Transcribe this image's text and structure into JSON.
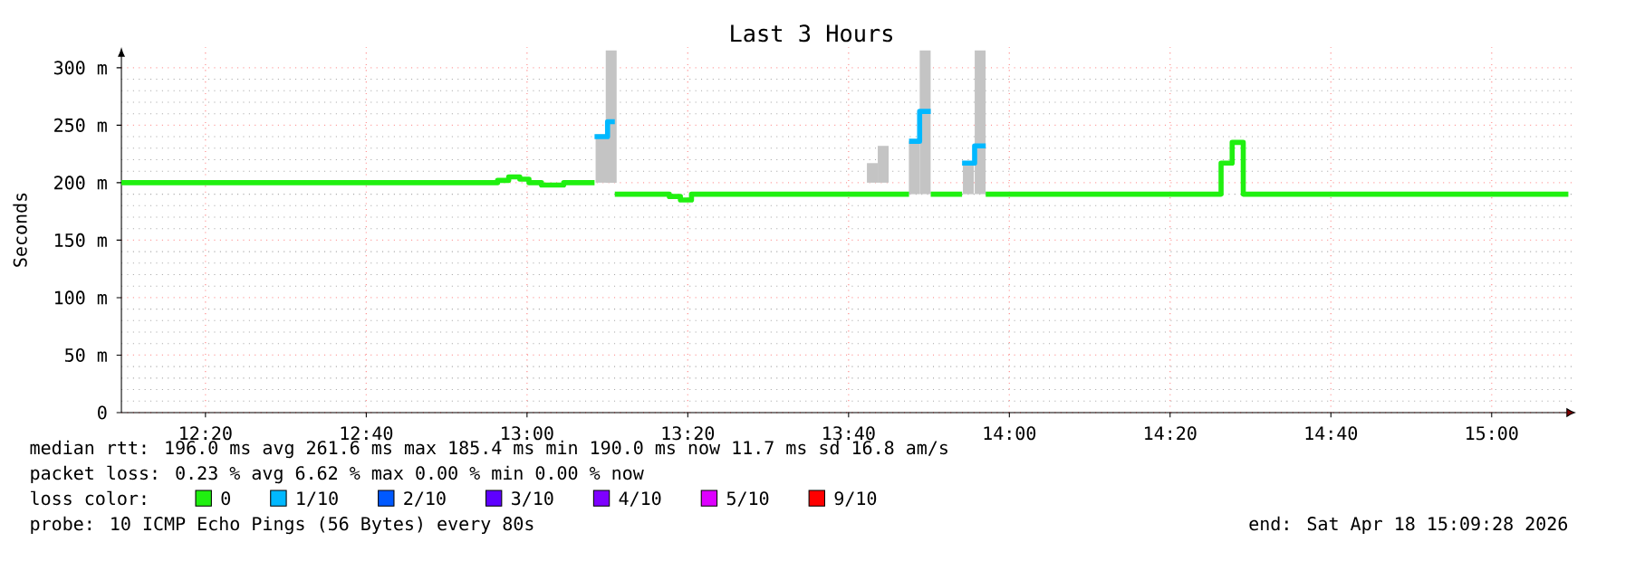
{
  "chart_data": {
    "type": "step",
    "title": "Last 3 Hours",
    "ylabel": "Seconds",
    "xlim": [
      12.159,
      15.175
    ],
    "ylim": [
      0,
      318
    ],
    "xticks": [
      {
        "value": 12.3333,
        "label": "12:20"
      },
      {
        "value": 12.6667,
        "label": "12:40"
      },
      {
        "value": 13,
        "label": "13:00"
      },
      {
        "value": 13.3333,
        "label": "13:20"
      },
      {
        "value": 13.6667,
        "label": "13:40"
      },
      {
        "value": 14,
        "label": "14:00"
      },
      {
        "value": 14.3333,
        "label": "14:20"
      },
      {
        "value": 14.6667,
        "label": "14:40"
      },
      {
        "value": 15,
        "label": "15:00"
      }
    ],
    "yticks": [
      0,
      {
        "value": 50,
        "label": "50 m"
      },
      {
        "value": 100,
        "label": "100 m"
      },
      {
        "value": 150,
        "label": "150 m"
      },
      {
        "value": 200,
        "label": "200 m"
      },
      {
        "value": 250,
        "label": "250 m"
      },
      {
        "value": 300,
        "label": "300 m"
      }
    ],
    "grid": true,
    "legend": "bottom",
    "legend_title": "loss color:",
    "series": [
      {
        "type": "bar",
        "color": "#c4c4c4",
        "x": [
          13.1535,
          13.1745,
          13.716,
          13.7385,
          13.803,
          13.8255,
          13.915,
          13.9395
        ],
        "base": [
          200,
          200,
          200,
          200,
          190,
          190,
          190,
          190
        ],
        "values": [
          42,
          115,
          17,
          32,
          46,
          125,
          27,
          125
        ]
      },
      {
        "name": "0",
        "color": "#20f010",
        "x": [
          12.159,
          12.939,
          12.962,
          12.985,
          13.004,
          13.03,
          13.076,
          13.14,
          null,
          13.182,
          13.295,
          13.318,
          13.341,
          13.792,
          null,
          13.837,
          13.902,
          null,
          13.951,
          14.439,
          14.462,
          14.485,
          15.159
        ],
        "values": [
          200,
          202,
          205,
          203,
          200,
          198,
          200,
          200,
          null,
          190,
          188,
          185,
          190,
          190,
          null,
          190,
          190,
          null,
          190,
          217,
          235,
          190,
          190
        ]
      },
      {
        "name": "1/10",
        "color": "#00b8ff",
        "x": [
          13.14,
          13.167,
          13.182,
          null,
          13.792,
          13.814,
          13.837,
          null,
          13.902,
          13.928,
          13.951
        ],
        "values": [
          240,
          253,
          253,
          null,
          236,
          262,
          262,
          null,
          217,
          232,
          232
        ]
      },
      {
        "name": "2/10",
        "color": "#0059ff"
      },
      {
        "name": "3/10",
        "color": "#5e00ff"
      },
      {
        "name": "4/10",
        "color": "#7e00ff"
      },
      {
        "name": "5/10",
        "color": "#dd00ff"
      },
      {
        "name": "9/10",
        "color": "#ff0000"
      }
    ],
    "annotations": [
      "median rtt: 196.0 ms avg 261.6 ms max 185.4 ms min 190.0 ms now 11.7 ms sd 16.8 am/s",
      "packet loss: 0.23 % avg 6.62 % max 0.00 % min 0.00 % now",
      "probe: 10 ICMP Echo Pings (56 Bytes) every 80s",
      "end: Sat Apr 18 15:09:28 2026"
    ]
  }
}
